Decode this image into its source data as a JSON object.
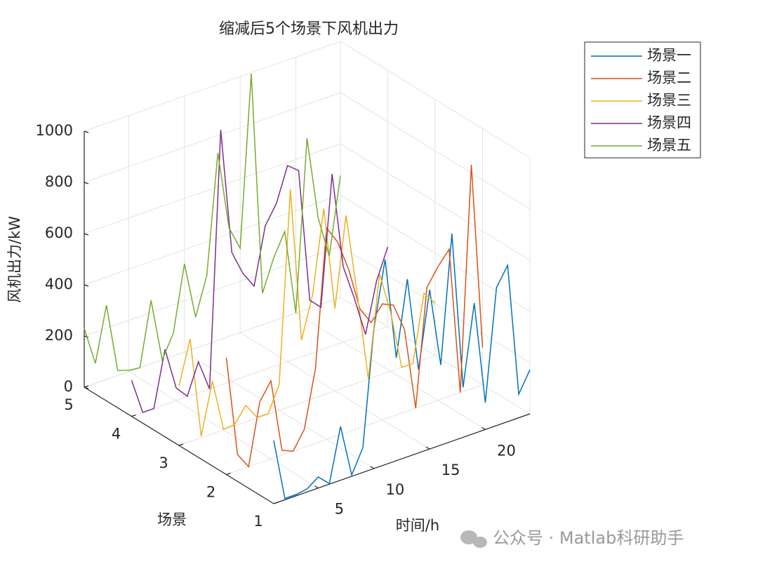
{
  "chart_data": {
    "type": "line3d",
    "title": "缩减后5个场景下风机出力",
    "x_label": "时间/h",
    "y_label": "场景",
    "z_label": "风机出力/kW",
    "x": [
      1,
      2,
      3,
      4,
      5,
      6,
      7,
      8,
      9,
      10,
      11,
      12,
      13,
      14,
      15,
      16,
      17,
      18,
      19,
      20,
      21,
      22,
      23,
      24
    ],
    "xlim": [
      1,
      24
    ],
    "xticks": [
      5,
      10,
      15,
      20
    ],
    "ylim": [
      1,
      5
    ],
    "yticks": [
      1,
      2,
      3,
      4,
      5
    ],
    "zlim": [
      0,
      1000
    ],
    "zticks": [
      0,
      200,
      400,
      600,
      800,
      1000
    ],
    "grid": true,
    "legend_position": "outside-top-right",
    "series": [
      {
        "name": "场景一",
        "scenario": 1,
        "color": "#0072BD",
        "values": [
          247,
          5,
          5,
          12,
          43,
          2,
          210,
          5,
          97,
          548,
          801,
          402,
          694,
          325,
          622,
          313,
          811,
          195,
          509,
          105,
          539,
          611,
          92,
          172
        ]
      },
      {
        "name": "场景二",
        "scenario": 2,
        "color": "#D95319",
        "values": [
          456,
          63,
          0,
          238,
          305,
          18,
          0,
          70,
          293,
          826,
          755,
          631,
          464,
          395,
          453,
          433,
          322,
          0,
          456,
          522,
          575,
          0,
          874,
          146
        ]
      },
      {
        "name": "场景三",
        "scenario": 3,
        "color": "#EDB120",
        "values": [
          233,
          401,
          5,
          206,
          2,
          6,
          65,
          3,
          1,
          101,
          848,
          243,
          406,
          727,
          321,
          670,
          350,
          1,
          396,
          231,
          0,
          0,
          259,
          205
        ]
      },
      {
        "name": "场景四",
        "scenario": 4,
        "color": "#7E2F8E",
        "values": [
          141,
          0,
          0,
          216,
          50,
          2,
          121,
          0,
          997,
          503,
          405,
          341,
          561,
          633,
          766,
          731,
          209,
          167,
          672,
          295,
          156,
          0,
          194,
          311
        ]
      },
      {
        "name": "场景五",
        "scenario": 5,
        "color": "#77AC30",
        "values": [
          230,
          78,
          290,
          20,
          5,
          0,
          248,
          0,
          89,
          345,
          121,
          268,
          732,
          424,
          329,
          996,
          123,
          245,
          334,
          0,
          668,
          342,
          177,
          476
        ]
      }
    ]
  },
  "watermark": "公众号 · Matlab科研助手"
}
